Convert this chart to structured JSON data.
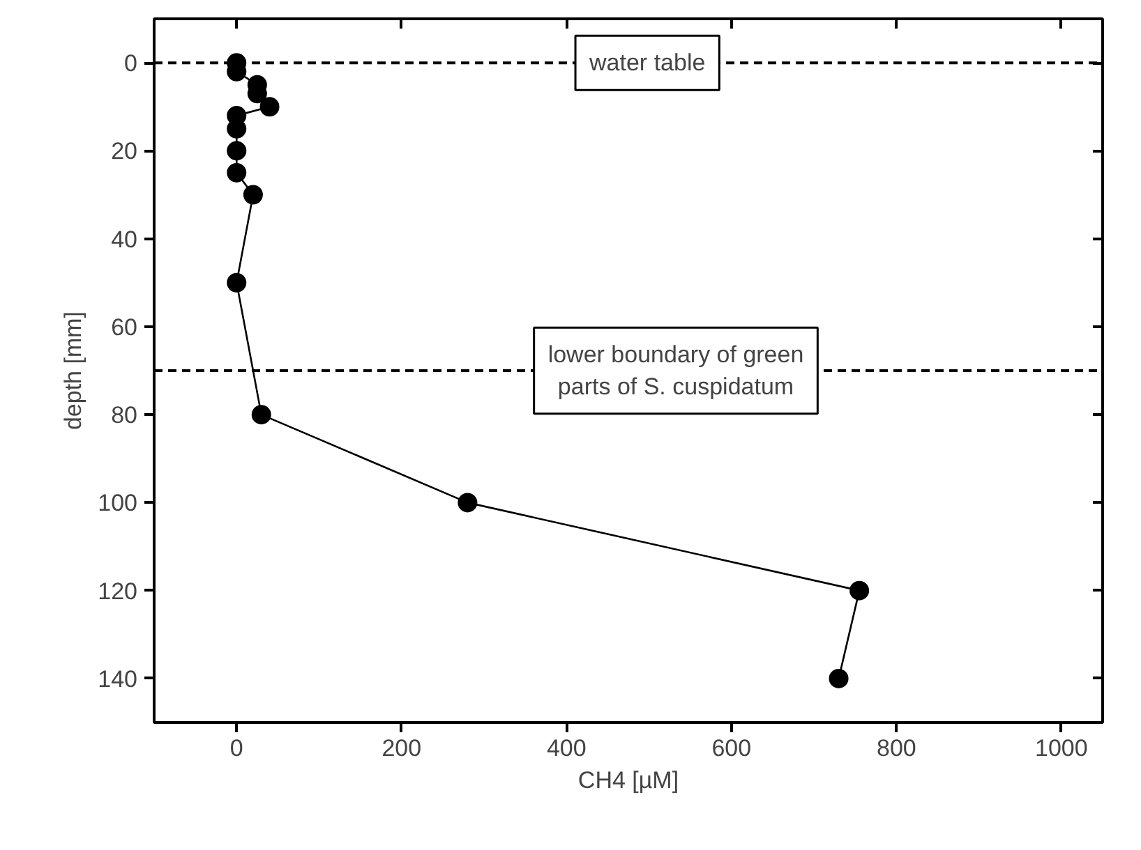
{
  "chart_data": {
    "type": "line",
    "xlabel": "CH4 [µM]",
    "ylabel": "depth [mm]",
    "x": [
      0,
      0,
      25,
      25,
      40,
      0,
      0,
      0,
      0,
      20,
      0,
      30,
      280,
      755,
      730
    ],
    "series": [
      {
        "color": "#000000",
        "values": [
          0,
          2,
          5,
          7,
          10,
          12,
          15,
          20,
          25,
          30,
          50,
          80,
          100,
          120,
          140
        ]
      }
    ],
    "marker": "circle",
    "line_style": "solid",
    "grid": false,
    "xlim": [
      -100,
      1050
    ],
    "xticks": [
      0,
      200,
      400,
      600,
      800,
      1000
    ],
    "ylim": [
      150,
      -10
    ],
    "yticks": [
      0,
      20,
      40,
      60,
      80,
      100,
      120,
      140
    ],
    "ref_lines": [
      {
        "axis": "y",
        "value": 0,
        "label": "water table",
        "line_style": "dashed",
        "color": "#000000"
      },
      {
        "axis": "y",
        "value": 70,
        "label": "lower boundary of green\nparts of S. cuspidatum",
        "line_style": "dashed",
        "color": "#000000"
      }
    ]
  }
}
